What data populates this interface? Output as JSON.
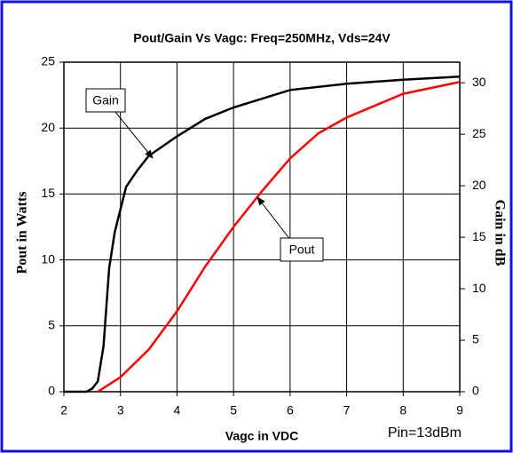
{
  "chart_data": {
    "type": "line",
    "title": "Pout/Gain Vs Vagc: Freq=250MHz, Vds=24V",
    "x_label": "Vagc in VDC",
    "y_label": "Pout in Watts",
    "y2_label": "Gain in dB",
    "xlim": [
      2,
      9
    ],
    "xticks": [
      2,
      3,
      4,
      5,
      6,
      7,
      8,
      9
    ],
    "ylim": [
      0,
      25
    ],
    "yticks": [
      0,
      5,
      10,
      15,
      20,
      25
    ],
    "y2lim": [
      0,
      32
    ],
    "y2ticks": [
      0,
      5,
      10,
      15,
      20,
      25,
      30
    ],
    "grid": true,
    "series": [
      {
        "name": "Gain",
        "color": "#000000",
        "axis": "y2",
        "x": [
          2.0,
          2.4,
          2.5,
          2.6,
          2.7,
          2.8,
          2.9,
          3.0,
          3.1,
          3.3,
          3.5,
          4.0,
          4.5,
          5.0,
          6.0,
          7.0,
          8.0,
          9.0
        ],
        "values": [
          0,
          0,
          0.3,
          1,
          4.4,
          12,
          15.5,
          17.7,
          19.9,
          21.5,
          22.9,
          24.8,
          26.5,
          27.6,
          29.3,
          29.9,
          30.3,
          30.6
        ]
      },
      {
        "name": "Pout",
        "color": "#ff0000",
        "x": [
          2.6,
          3.0,
          3.5,
          4.0,
          4.5,
          5.0,
          5.5,
          6.0,
          6.5,
          7.0,
          8.0,
          9.0
        ],
        "values": [
          0,
          1.1,
          3.2,
          6.1,
          9.5,
          12.5,
          15.2,
          17.7,
          19.6,
          20.8,
          22.6,
          23.5
        ]
      }
    ],
    "annotations": [
      {
        "text": "Pin=13dBm"
      }
    ]
  }
}
